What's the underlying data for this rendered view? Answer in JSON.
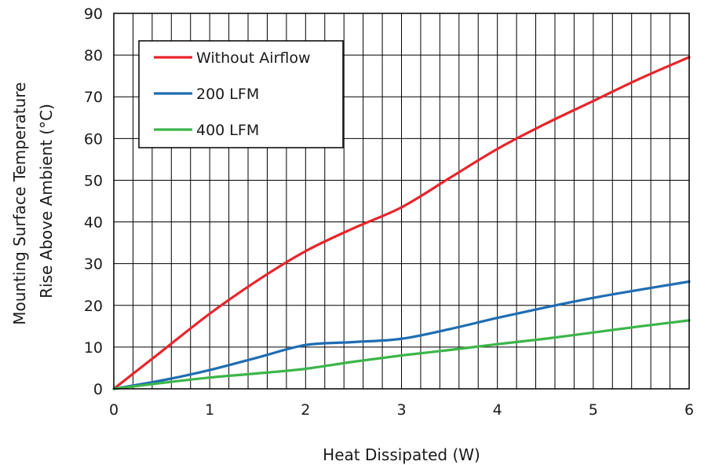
{
  "chart_data": {
    "type": "line",
    "title": "",
    "xlabel": "Heat Dissipated (W)",
    "ylabel_lines": [
      "Mounting Surface Temperature",
      "Rise Above  Ambient (°C)"
    ],
    "xlim": [
      0,
      6
    ],
    "ylim": [
      0,
      90
    ],
    "x_ticks": [
      0,
      1,
      2,
      3,
      4,
      5,
      6
    ],
    "y_ticks": [
      0,
      10,
      20,
      30,
      40,
      50,
      60,
      70,
      80,
      90
    ],
    "minor_x_step": 0.2,
    "grid": true,
    "legend_position": "top-left",
    "series": [
      {
        "name": "Without Airflow",
        "color": "#e8252b",
        "x": [
          0,
          0.5,
          1,
          1.5,
          2,
          2.5,
          3,
          3.5,
          4,
          4.5,
          5,
          5.5,
          6
        ],
        "y": [
          0,
          9,
          18,
          26,
          33,
          38.5,
          43.5,
          50.5,
          57.5,
          63.5,
          69,
          74.5,
          79.5
        ]
      },
      {
        "name": "200 LFM",
        "color": "#1e6db3",
        "x": [
          0,
          0.5,
          1,
          1.5,
          2,
          2.5,
          3,
          3.5,
          4,
          4.5,
          5,
          5.5,
          6
        ],
        "y": [
          0,
          2,
          4.5,
          7.5,
          10.5,
          11.2,
          12,
          14.3,
          17,
          19.5,
          21.8,
          23.8,
          25.7
        ]
      },
      {
        "name": "400 LFM",
        "color": "#3cb54a",
        "x": [
          0,
          0.5,
          1,
          1.5,
          2,
          2.5,
          3,
          3.5,
          4,
          4.5,
          5,
          5.5,
          6
        ],
        "y": [
          0,
          1.4,
          2.7,
          3.7,
          4.8,
          6.5,
          8,
          9.3,
          10.7,
          12,
          13.5,
          15,
          16.4
        ]
      }
    ]
  }
}
